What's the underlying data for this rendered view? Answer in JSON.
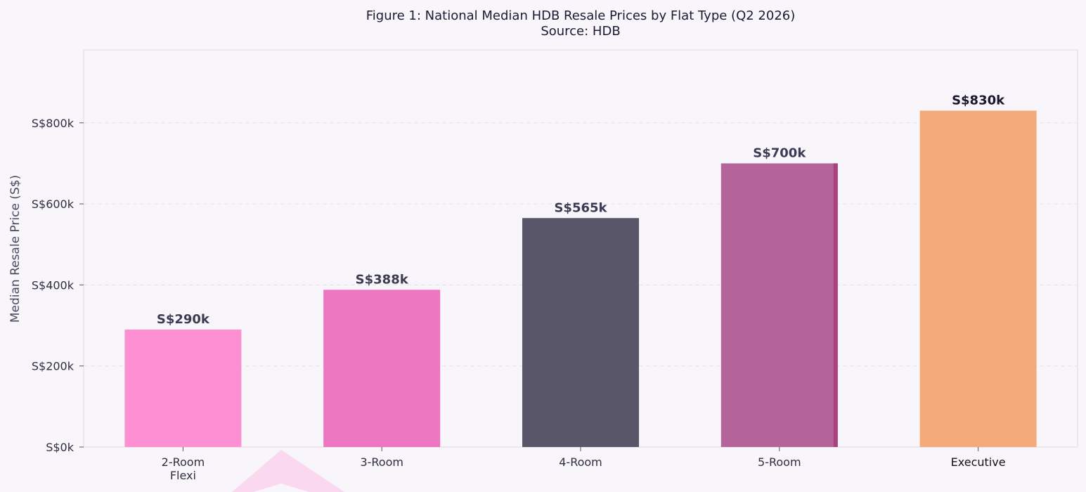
{
  "chart_data": {
    "type": "bar",
    "title": "Figure 1: National Median HDB Resale Prices by Flat Type (Q2 2026)",
    "subtitle": "Source: HDB",
    "xlabel": "",
    "ylabel": "Median Resale Price (S$)",
    "ylim": [
      0,
      980
    ],
    "yticks": [
      0,
      200,
      400,
      600,
      800
    ],
    "ytick_labels": [
      "S$0k",
      "S$200k",
      "S$400k",
      "S$600k",
      "S$800k"
    ],
    "grid": true,
    "legend": "none",
    "categories": [
      [
        "2-Room",
        "Flexi"
      ],
      [
        "3-Room"
      ],
      [
        "4-Room"
      ],
      [
        "5-Room"
      ],
      [
        "Executive"
      ]
    ],
    "values": [
      290,
      388,
      565,
      700,
      830
    ],
    "value_labels": [
      "S$290k",
      "S$388k",
      "S$565k",
      "S$700k",
      "S$830k"
    ],
    "colors": [
      "#fd8fd3",
      "#ec76c0",
      "#5a5669",
      "#b4649a",
      "#f4a97b"
    ],
    "accent_edge": "#a8437f"
  }
}
